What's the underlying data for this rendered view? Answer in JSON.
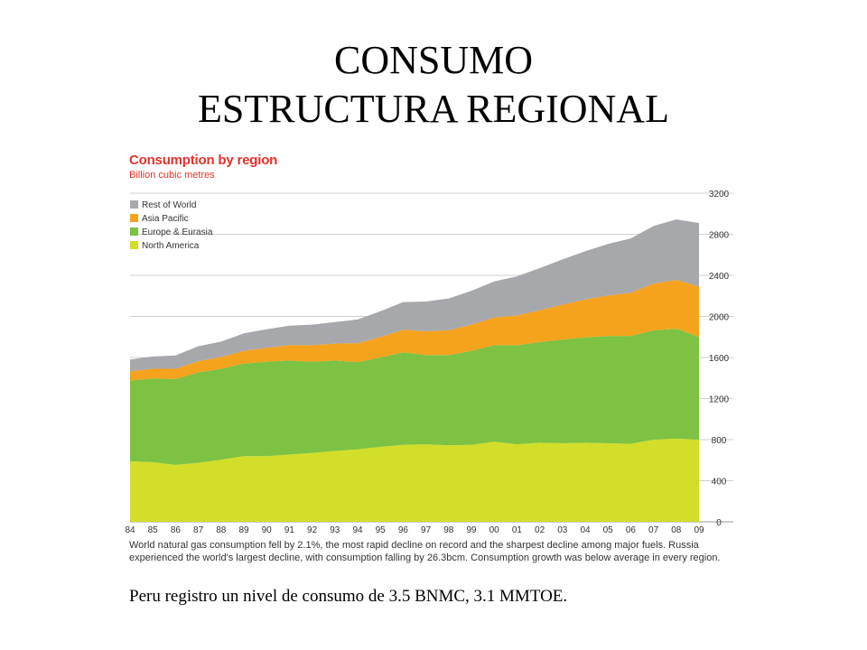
{
  "slide": {
    "title_line1": "CONSUMO",
    "title_line2": "ESTRUCTURA REGIONAL",
    "footer_note": "Peru registro un nivel de consumo de 3.5 BNMC, 3.1 MMTOE."
  },
  "chart_data": {
    "type": "area",
    "stacked": true,
    "title": "Consumption by region",
    "subtitle": "Billion cubic metres",
    "categories": [
      "84",
      "85",
      "86",
      "87",
      "88",
      "89",
      "90",
      "91",
      "92",
      "93",
      "94",
      "95",
      "96",
      "97",
      "98",
      "99",
      "00",
      "01",
      "02",
      "03",
      "04",
      "05",
      "06",
      "07",
      "08",
      "09"
    ],
    "ylim": [
      0,
      3200
    ],
    "yticks": [
      0,
      400,
      800,
      1200,
      1600,
      2000,
      2400,
      2800,
      3200
    ],
    "y_axis_side": "right",
    "grid": true,
    "legend_position": "top-left",
    "series": [
      {
        "name": "North America",
        "color": "#d2de2a",
        "values": [
          590,
          580,
          555,
          575,
          605,
          640,
          640,
          655,
          670,
          690,
          705,
          730,
          750,
          755,
          745,
          750,
          780,
          755,
          770,
          765,
          770,
          765,
          760,
          800,
          810,
          800
        ]
      },
      {
        "name": "Europe & Eurasia",
        "color": "#7dc242",
        "values": [
          785,
          815,
          835,
          880,
          885,
          900,
          920,
          915,
          890,
          880,
          850,
          870,
          900,
          870,
          880,
          915,
          940,
          965,
          980,
          1010,
          1025,
          1045,
          1050,
          1065,
          1070,
          1000
        ]
      },
      {
        "name": "Asia Pacific",
        "color": "#f5a21d",
        "values": [
          90,
          95,
          100,
          110,
          115,
          125,
          135,
          150,
          160,
          165,
          185,
          200,
          220,
          230,
          240,
          255,
          270,
          290,
          310,
          340,
          370,
          395,
          420,
          455,
          475,
          490
        ]
      },
      {
        "name": "Rest of World",
        "color": "#a7a8ab",
        "values": [
          115,
          120,
          130,
          145,
          150,
          170,
          180,
          190,
          200,
          210,
          230,
          250,
          270,
          290,
          310,
          330,
          350,
          380,
          410,
          440,
          470,
          500,
          530,
          560,
          590,
          620
        ]
      }
    ],
    "legend_order": [
      "Rest of World",
      "Asia Pacific",
      "Europe & Eurasia",
      "North America"
    ],
    "caption": "World natural gas consumption fell by 2.1%, the most rapid decline on record and the sharpest decline among major fuels. Russia experienced the world's largest decline, with consumption falling by 26.3bcm. Consumption growth was below average in every region."
  }
}
